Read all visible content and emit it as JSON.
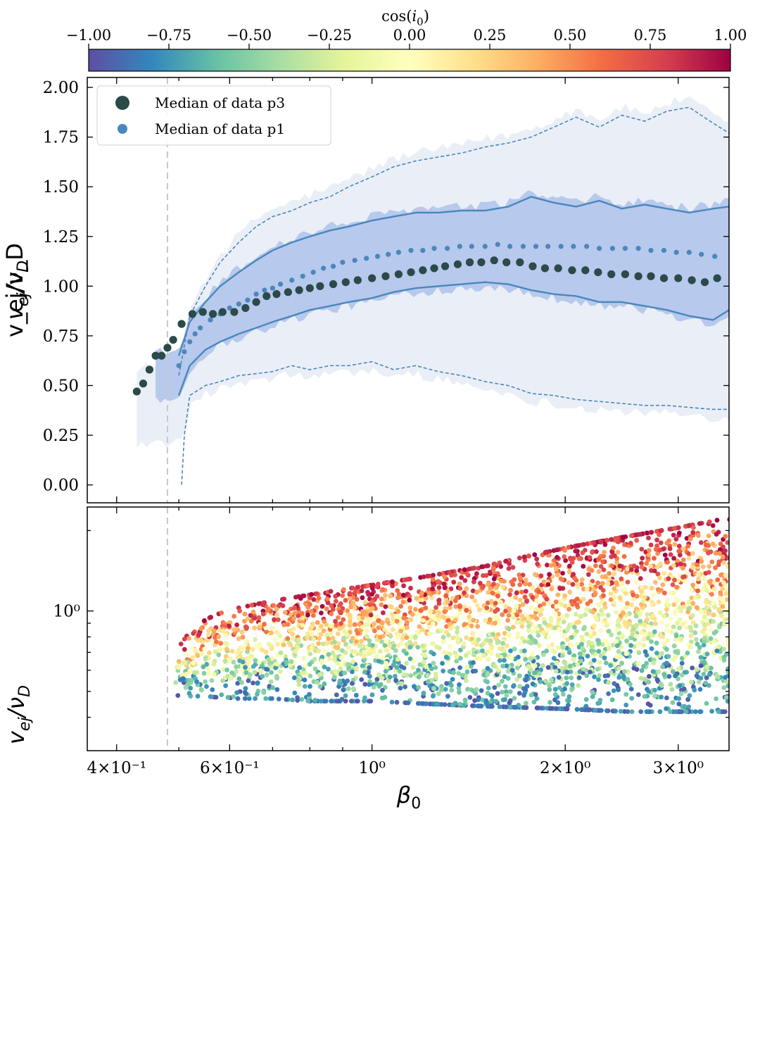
{
  "colorbar": {
    "label": "cos(i0)",
    "label_main": "cos(",
    "label_var": "i",
    "label_sub": "0",
    "label_close": ")",
    "range": [
      -1.0,
      1.0
    ],
    "colormap": "Spectral_r",
    "colors": [
      "#5e4fa2",
      "#3288bd",
      "#66c2a5",
      "#abdda4",
      "#e6f598",
      "#ffffbf",
      "#fee08b",
      "#fdae61",
      "#f46d43",
      "#d53e4f",
      "#9e0142"
    ],
    "ticks": [
      -1.0,
      -0.75,
      -0.5,
      -0.25,
      0.0,
      0.25,
      0.5,
      0.75,
      1.0
    ],
    "tick_labels": [
      "−1.00",
      "−0.75",
      "−0.50",
      "−0.25",
      "0.00",
      "0.25",
      "0.50",
      "0.75",
      "1.00"
    ]
  },
  "chart_data": [
    {
      "type": "line",
      "panel": "top",
      "xscale": "log",
      "xlim": [
        0.36,
        3.6
      ],
      "ylim": [
        -0.09,
        2.05
      ],
      "ylabel": "v_ej/v_D",
      "yticks": [
        0.0,
        0.25,
        0.5,
        0.75,
        1.0,
        1.25,
        1.5,
        1.75,
        2.0
      ],
      "ytick_labels": [
        "0.00",
        "0.25",
        "0.50",
        "0.75",
        "1.00",
        "1.25",
        "1.50",
        "1.75",
        "2.00"
      ],
      "vline_x": 0.48,
      "legend": {
        "placement": "top-left",
        "entries": [
          "Median of data p3",
          "Median of data p1"
        ]
      },
      "colors": {
        "p3": "#2b4a4a",
        "p1": "#4a87bd",
        "band_inner": "#b7c9ec",
        "band_outer": "#eaeff7",
        "line": "#4a87bd",
        "vline": "#c8c8c8"
      },
      "series": [
        {
          "name": "Median of data p3",
          "style": "large dots",
          "x": [
            0.43,
            0.44,
            0.45,
            0.46,
            0.47,
            0.48,
            0.49,
            0.505,
            0.525,
            0.545,
            0.565,
            0.585,
            0.61,
            0.635,
            0.66,
            0.685,
            0.71,
            0.74,
            0.77,
            0.8,
            0.83,
            0.87,
            0.91,
            0.95,
            1.0,
            1.05,
            1.1,
            1.15,
            1.2,
            1.25,
            1.3,
            1.36,
            1.42,
            1.48,
            1.55,
            1.62,
            1.7,
            1.78,
            1.86,
            1.95,
            2.05,
            2.15,
            2.25,
            2.36,
            2.48,
            2.6,
            2.72,
            2.85,
            3.0,
            3.15,
            3.3,
            3.45
          ],
          "values": [
            0.47,
            0.51,
            0.58,
            0.65,
            0.65,
            0.69,
            0.73,
            0.81,
            0.86,
            0.87,
            0.86,
            0.87,
            0.87,
            0.89,
            0.92,
            0.95,
            0.96,
            0.97,
            0.98,
            0.99,
            1.0,
            1.01,
            1.02,
            1.03,
            1.04,
            1.05,
            1.06,
            1.07,
            1.08,
            1.09,
            1.1,
            1.11,
            1.12,
            1.12,
            1.13,
            1.12,
            1.12,
            1.1,
            1.09,
            1.09,
            1.08,
            1.08,
            1.07,
            1.06,
            1.06,
            1.05,
            1.05,
            1.04,
            1.04,
            1.03,
            1.02,
            1.04
          ]
        },
        {
          "name": "Median of data p1",
          "style": "small dots",
          "x": [
            0.5,
            0.51,
            0.52,
            0.53,
            0.54,
            0.56,
            0.58,
            0.6,
            0.62,
            0.64,
            0.66,
            0.68,
            0.7,
            0.72,
            0.75,
            0.78,
            0.81,
            0.84,
            0.87,
            0.9,
            0.94,
            0.98,
            1.02,
            1.06,
            1.1,
            1.15,
            1.2,
            1.25,
            1.31,
            1.37,
            1.43,
            1.5,
            1.57,
            1.64,
            1.72,
            1.8,
            1.88,
            1.97,
            2.06,
            2.16,
            2.26,
            2.37,
            2.48,
            2.6,
            2.72,
            2.85,
            2.98,
            3.12,
            3.26,
            3.42
          ],
          "values": [
            0.6,
            0.67,
            0.72,
            0.76,
            0.79,
            0.83,
            0.86,
            0.89,
            0.91,
            0.93,
            0.96,
            0.98,
            0.99,
            1.01,
            1.03,
            1.05,
            1.07,
            1.09,
            1.1,
            1.12,
            1.13,
            1.14,
            1.15,
            1.16,
            1.17,
            1.18,
            1.18,
            1.19,
            1.19,
            1.2,
            1.2,
            1.2,
            1.21,
            1.2,
            1.2,
            1.2,
            1.2,
            1.2,
            1.2,
            1.2,
            1.19,
            1.19,
            1.19,
            1.19,
            1.18,
            1.18,
            1.17,
            1.17,
            1.16,
            1.15
          ]
        },
        {
          "name": "",
          "style": "solid line, upper quartile",
          "x": [
            0.5,
            0.52,
            0.55,
            0.58,
            0.62,
            0.66,
            0.7,
            0.75,
            0.8,
            0.86,
            0.92,
            1.0,
            1.08,
            1.17,
            1.27,
            1.38,
            1.5,
            1.63,
            1.77,
            1.92,
            2.08,
            2.26,
            2.45,
            2.66,
            2.88,
            3.12,
            3.4,
            3.6
          ],
          "values": [
            0.65,
            0.82,
            0.92,
            1.0,
            1.07,
            1.13,
            1.18,
            1.22,
            1.25,
            1.28,
            1.3,
            1.33,
            1.35,
            1.37,
            1.37,
            1.38,
            1.38,
            1.4,
            1.45,
            1.42,
            1.4,
            1.43,
            1.39,
            1.41,
            1.39,
            1.37,
            1.39,
            1.4
          ]
        },
        {
          "name": "",
          "style": "solid line, lower quartile",
          "x": [
            0.5,
            0.52,
            0.55,
            0.58,
            0.62,
            0.66,
            0.7,
            0.75,
            0.8,
            0.86,
            0.92,
            1.0,
            1.08,
            1.17,
            1.27,
            1.38,
            1.5,
            1.63,
            1.77,
            1.92,
            2.08,
            2.26,
            2.45,
            2.66,
            2.88,
            3.12,
            3.4,
            3.6
          ],
          "values": [
            0.45,
            0.6,
            0.68,
            0.72,
            0.76,
            0.79,
            0.82,
            0.85,
            0.88,
            0.9,
            0.92,
            0.94,
            0.97,
            0.99,
            1.0,
            1.01,
            1.02,
            1.01,
            0.98,
            0.96,
            0.95,
            0.92,
            0.92,
            0.9,
            0.88,
            0.85,
            0.83,
            0.88
          ]
        },
        {
          "name": "",
          "style": "dashed line, upper percentile",
          "x": [
            0.5,
            0.52,
            0.55,
            0.58,
            0.62,
            0.66,
            0.7,
            0.75,
            0.8,
            0.86,
            0.92,
            1.0,
            1.08,
            1.17,
            1.27,
            1.38,
            1.5,
            1.63,
            1.77,
            1.92,
            2.08,
            2.26,
            2.45,
            2.66,
            2.88,
            3.12,
            3.4,
            3.6
          ],
          "values": [
            0.55,
            0.85,
            1.0,
            1.12,
            1.22,
            1.3,
            1.35,
            1.38,
            1.42,
            1.45,
            1.5,
            1.55,
            1.6,
            1.63,
            1.65,
            1.67,
            1.7,
            1.72,
            1.75,
            1.8,
            1.85,
            1.8,
            1.86,
            1.83,
            1.88,
            1.9,
            1.82,
            1.77
          ]
        },
        {
          "name": "",
          "style": "dashed line, lower percentile",
          "x": [
            0.505,
            0.51,
            0.52,
            0.55,
            0.58,
            0.62,
            0.66,
            0.7,
            0.75,
            0.8,
            0.86,
            0.92,
            1.0,
            1.08,
            1.17,
            1.27,
            1.38,
            1.5,
            1.63,
            1.77,
            1.92,
            2.08,
            2.26,
            2.45,
            2.66,
            2.88,
            3.12,
            3.4,
            3.6
          ],
          "values": [
            0.0,
            0.25,
            0.45,
            0.5,
            0.52,
            0.55,
            0.56,
            0.57,
            0.6,
            0.58,
            0.6,
            0.6,
            0.62,
            0.58,
            0.6,
            0.57,
            0.55,
            0.52,
            0.5,
            0.46,
            0.45,
            0.43,
            0.42,
            0.41,
            0.4,
            0.4,
            0.39,
            0.38,
            0.38
          ]
        }
      ]
    },
    {
      "type": "scatter",
      "panel": "bottom",
      "xscale": "log",
      "yscale": "log",
      "xlim": [
        0.36,
        3.6
      ],
      "ylim": [
        0.3,
        2.45
      ],
      "xlabel": "β_0",
      "ylabel": "v_ej/v_D",
      "xticks": [
        0.4,
        0.6,
        1.0,
        2.0,
        3.0
      ],
      "xtick_labels": [
        "4×10⁻¹",
        "6×10⁻¹",
        "10⁰",
        "2×10⁰",
        "3×10⁰"
      ],
      "yticks": [
        1.0
      ],
      "ytick_labels": [
        "10⁰"
      ],
      "vline_x": 0.48,
      "color_by": "cos(i0)",
      "envelope": {
        "x": [
          0.48,
          0.5,
          0.55,
          0.6,
          0.7,
          0.8,
          1.0,
          1.2,
          1.5,
          2.0,
          2.5,
          3.0,
          3.5
        ],
        "upper": [
          0.55,
          0.75,
          0.93,
          1.01,
          1.09,
          1.15,
          1.25,
          1.34,
          1.47,
          1.72,
          1.9,
          2.05,
          2.2
        ],
        "lower": [
          0.5,
          0.48,
          0.48,
          0.47,
          0.47,
          0.46,
          0.46,
          0.45,
          0.44,
          0.43,
          0.42,
          0.42,
          0.42
        ]
      }
    }
  ]
}
